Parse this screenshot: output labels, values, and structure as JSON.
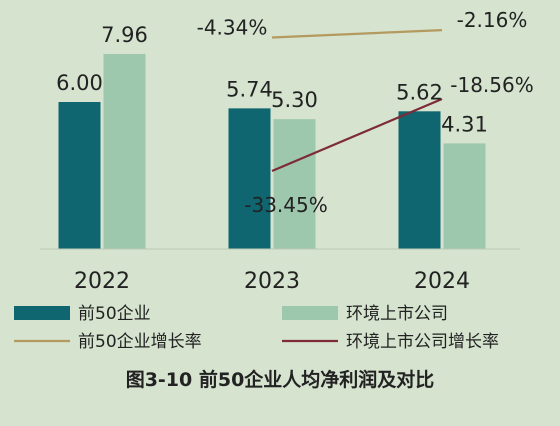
{
  "chart_data": {
    "type": "bar",
    "categories": [
      "2022",
      "2023",
      "2024"
    ],
    "series": [
      {
        "name": "前50企业",
        "kind": "bar",
        "values": [
          6.0,
          5.74,
          5.62
        ],
        "labels": [
          "6.00",
          "5.74",
          "5.62"
        ],
        "color": "#0f6670"
      },
      {
        "name": "环境上市公司",
        "kind": "bar",
        "values": [
          7.96,
          5.3,
          4.31
        ],
        "labels": [
          "7.96",
          "5.30",
          "4.31"
        ],
        "color": "#9dc8ad"
      },
      {
        "name": "前50企业增长率",
        "kind": "line",
        "values": [
          null,
          -4.34,
          -2.16
        ],
        "labels": [
          "",
          "-4.34%",
          "-2.16%"
        ],
        "color": "#b49a5e"
      },
      {
        "name": "环境上市公司增长率",
        "kind": "line",
        "values": [
          null,
          -33.45,
          -18.56
        ],
        "labels": [
          "",
          "-33.45%",
          "-18.56%"
        ],
        "color": "#7d2b36"
      }
    ],
    "bar_ylim": [
      0,
      10
    ],
    "grid": false,
    "legend_position": "bottom",
    "caption": "图3-10 前50企业人均净利润及对比"
  }
}
